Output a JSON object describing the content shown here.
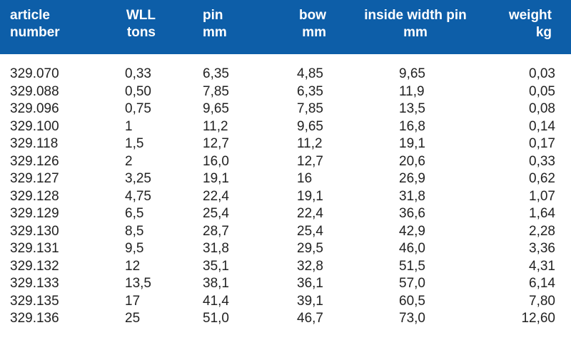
{
  "headers": [
    {
      "line1": "article",
      "line2": "number"
    },
    {
      "line1": "WLL",
      "line2": "tons"
    },
    {
      "line1": "pin",
      "line2": "mm"
    },
    {
      "line1": "bow",
      "line2": "mm"
    },
    {
      "line1": "inside width pin",
      "line2": "mm"
    },
    {
      "line1": "weight",
      "line2": "kg"
    }
  ],
  "rows": [
    [
      "329.070",
      "0,33",
      "6,35",
      "4,85",
      "9,65",
      "0,03"
    ],
    [
      "329.088",
      "0,50",
      "7,85",
      "6,35",
      "11,9",
      "0,05"
    ],
    [
      "329.096",
      "0,75",
      "9,65",
      "7,85",
      "13,5",
      "0,08"
    ],
    [
      "329.100",
      "1",
      "11,2",
      "9,65",
      "16,8",
      "0,14"
    ],
    [
      "329.118",
      "1,5",
      "12,7",
      "11,2",
      "19,1",
      "0,17"
    ],
    [
      "329.126",
      "2",
      "16,0",
      "12,7",
      "20,6",
      "0,33"
    ],
    [
      "329.127",
      "3,25",
      "19,1",
      "16",
      "26,9",
      "0,62"
    ],
    [
      "329.128",
      "4,75",
      "22,4",
      "19,1",
      "31,8",
      "1,07"
    ],
    [
      "329.129",
      "6,5",
      "25,4",
      "22,4",
      "36,6",
      "1,64"
    ],
    [
      "329.130",
      "8,5",
      "28,7",
      "25,4",
      "42,9",
      "2,28"
    ],
    [
      "329.131",
      "9,5",
      "31,8",
      "29,5",
      "46,0",
      "3,36"
    ],
    [
      "329.132",
      "12",
      "35,1",
      "32,8",
      "51,5",
      "4,31"
    ],
    [
      "329.133",
      "13,5",
      "38,1",
      "36,1",
      "57,0",
      "6,14"
    ],
    [
      "329.135",
      "17",
      "41,4",
      "39,1",
      "60,5",
      "7,80"
    ],
    [
      "329.136",
      "25",
      "51,0",
      "46,7",
      "73,0",
      "12,60"
    ]
  ]
}
